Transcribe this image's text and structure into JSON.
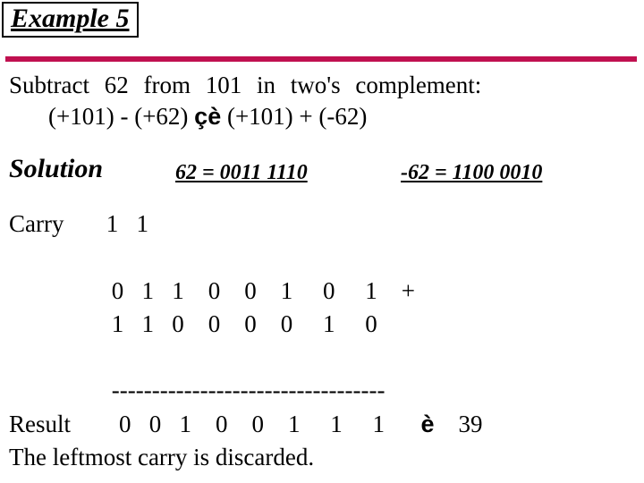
{
  "example": {
    "label": "Example 5"
  },
  "problem": {
    "line1": "Subtract  62  from  101  in  two's  complement:",
    "line2_a": "(+101) - (+62) ",
    "line2_arrows": "çè",
    "line2_b": "   (+101) + (-62)"
  },
  "solution": {
    "label": "Solution",
    "conv1": "62 = 0011 1110",
    "conv2": "-62 = 1100 0010"
  },
  "calc": {
    "carry": "Carry       1   1",
    "blank1": "",
    "row1": "                 0   1   1    0    0    1     0     1    +",
    "row2": "                 1   1   0    0    0    0     1     0",
    "blank2": "",
    "dash": "                 ----------------------------------",
    "result_pre": "Result        0   0   1    0    0    1     1     1      ",
    "result_arrow": "è",
    "result_post": "    39",
    "note": "The leftmost carry is discarded."
  }
}
